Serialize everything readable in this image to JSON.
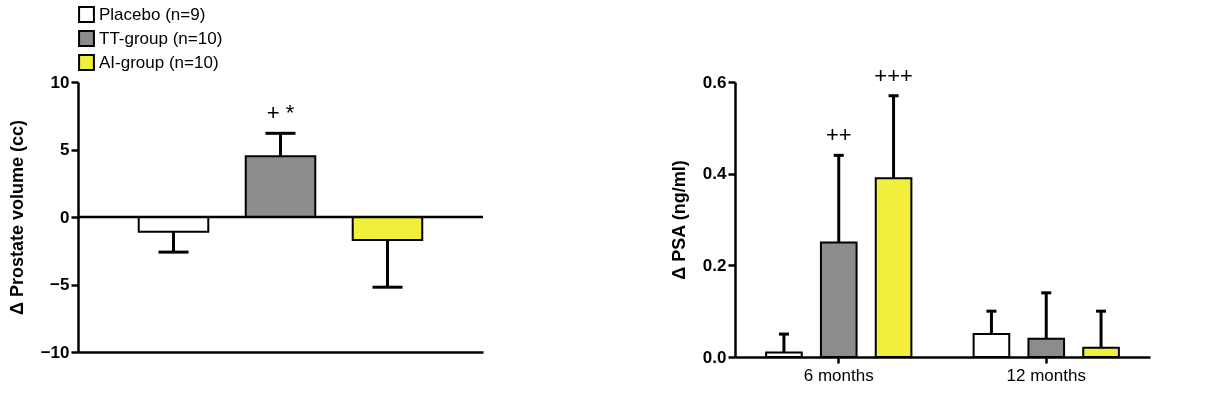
{
  "chart_data": [
    {
      "type": "bar",
      "ylabel": "Δ Prostate volume (cc)",
      "categories": [
        null
      ],
      "tick_labels": "y",
      "legend": "top left",
      "series": [
        {
          "name": "Placebo (n=9)",
          "color": "#ffffff",
          "values": [
            -1.1
          ],
          "errors": [
            [
              -2.6,
              -1.1
            ]
          ]
        },
        {
          "name": "TT-group (n=10)",
          "color": "#8c8c8c",
          "values": [
            4.5
          ],
          "errors": [
            [
              4.5,
              6.2
            ]
          ]
        },
        {
          "name": "AI-group (n=10)",
          "color": "#f2ef3c",
          "values": [
            -1.7
          ],
          "errors": [
            [
              -5.2,
              -1.7
            ]
          ]
        }
      ],
      "ylim": [
        -10,
        10
      ],
      "yticks": [
        -10,
        -5,
        0,
        5,
        10
      ],
      "ref_lines": [
        {
          "axis": "y",
          "value": 0
        }
      ],
      "annotations": [
        "+ *"
      ]
    },
    {
      "type": "bar",
      "ylabel": "Δ PSA (ng/ml)",
      "categories": [
        "6 months",
        "12 months"
      ],
      "series": [
        {
          "color": "#ffffff",
          "values": [
            0.01,
            0.05
          ],
          "errors": [
            [
              0.01,
              0.05
            ],
            [
              0.05,
              0.1
            ]
          ]
        },
        {
          "color": "#8c8c8c",
          "values": [
            0.25,
            0.04
          ],
          "errors": [
            [
              0.25,
              0.44
            ],
            [
              0.04,
              0.14
            ]
          ]
        },
        {
          "color": "#f2ef3c",
          "values": [
            0.39,
            0.02
          ],
          "errors": [
            [
              0.39,
              0.57
            ],
            [
              0.02,
              0.1
            ]
          ]
        }
      ],
      "ylim": [
        0,
        0.6
      ],
      "yticks": [
        {
          "value": 0,
          "label": "0.0"
        },
        {
          "value": 0.2,
          "label": "0.2"
        },
        {
          "value": 0.4,
          "label": "0.4"
        },
        {
          "value": 0.6,
          "label": "0.6"
        }
      ],
      "annotations": [
        "++",
        "+++"
      ]
    }
  ]
}
